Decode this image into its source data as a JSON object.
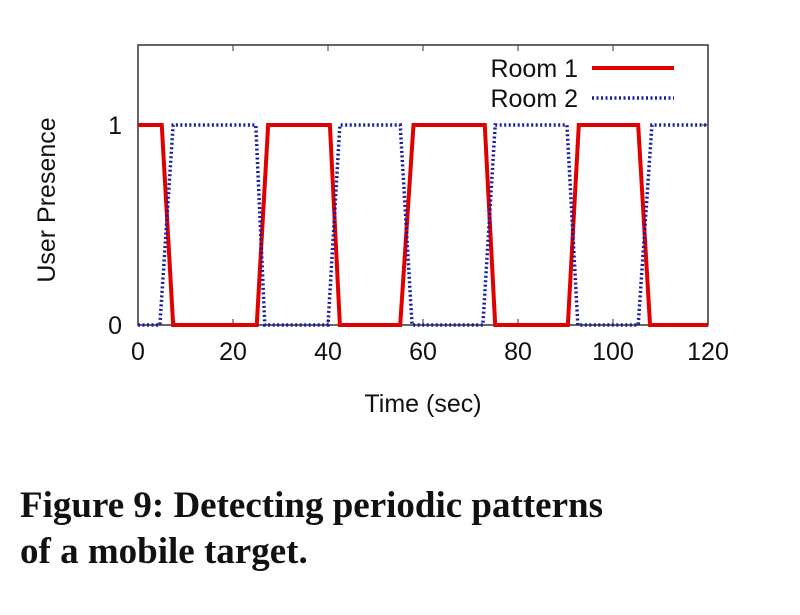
{
  "chart_data": {
    "type": "line",
    "title": "",
    "xlabel": "Time (sec)",
    "ylabel": "User Presence",
    "xlim": [
      0,
      120
    ],
    "ylim": [
      0,
      1.4
    ],
    "xticks": [
      0,
      20,
      40,
      60,
      80,
      100,
      120
    ],
    "yticks": [
      0,
      1
    ],
    "legend": "top-right",
    "series": [
      {
        "name": "Room 1",
        "color": "#e00000",
        "style": "solid",
        "x": [
          0,
          5,
          7.4,
          25,
          27.4,
          40.4,
          42.5,
          55.2,
          58,
          73,
          75.2,
          90.5,
          92.8,
          105.3,
          107.8,
          120
        ],
        "y": [
          1,
          1,
          0,
          0,
          1,
          1,
          0,
          0,
          1,
          1,
          0,
          0,
          1,
          1,
          0,
          0
        ]
      },
      {
        "name": "Room 2",
        "color": "#1a1aa8",
        "style": "dotted",
        "x": [
          0,
          4.6,
          7.4,
          24.8,
          26.7,
          40,
          42.5,
          55.2,
          57.7,
          72.6,
          75.2,
          90.3,
          92.6,
          105.3,
          108.2,
          120
        ],
        "y": [
          0,
          0,
          1,
          1,
          0,
          0,
          1,
          1,
          0,
          0,
          1,
          1,
          0,
          0,
          1,
          1
        ]
      }
    ]
  },
  "caption": {
    "line1": "Figure 9:  Detecting periodic patterns",
    "line2": "of a mobile target."
  }
}
